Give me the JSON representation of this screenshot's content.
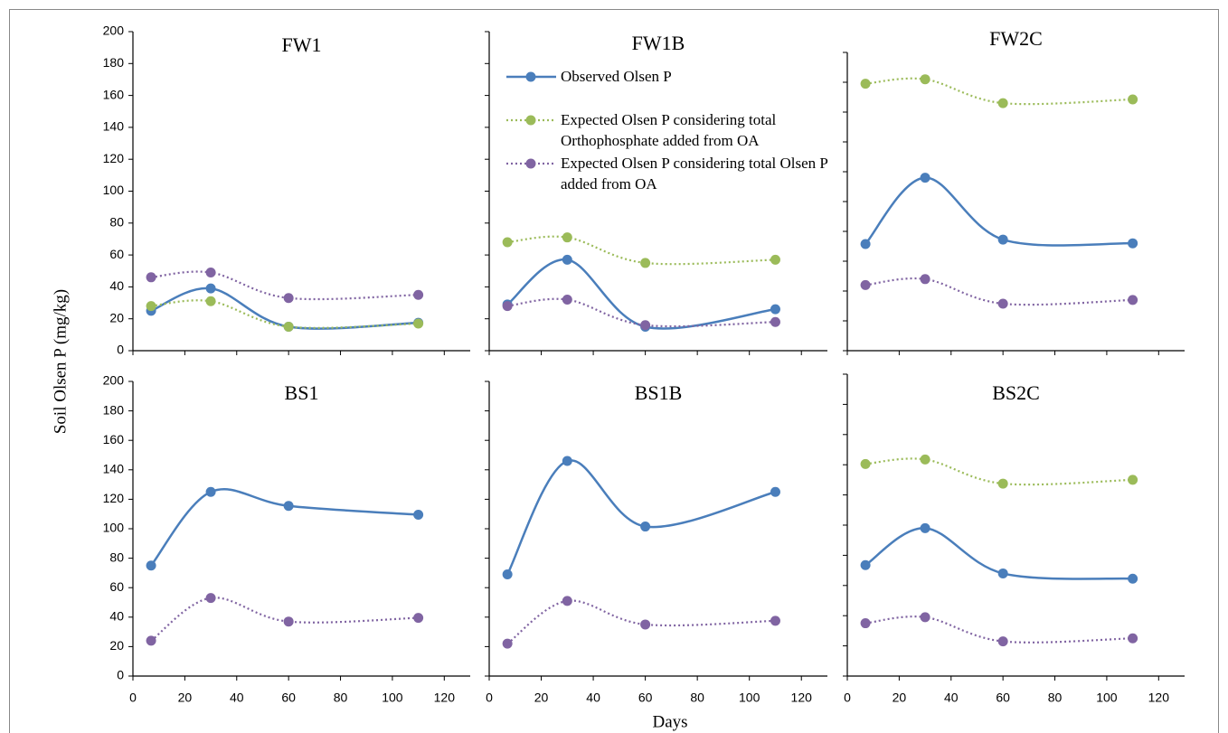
{
  "y_label": "Soil Olsen P (mg/kg)",
  "x_label": "Days",
  "chart_data": [
    {
      "type": "line",
      "title": "FW1",
      "xlim": [
        0,
        130
      ],
      "ylim": [
        0,
        200
      ],
      "xticks": [
        0,
        20,
        40,
        60,
        80,
        100,
        120
      ],
      "yticks": [
        0,
        20,
        40,
        60,
        80,
        100,
        120,
        140,
        160,
        180,
        200
      ],
      "xtick_labels": false,
      "ytick_labels": true,
      "x": [
        7,
        30,
        60,
        110
      ],
      "series": [
        {
          "color": "#4a7ebb",
          "line_style": "solid",
          "values": [
            25,
            39,
            15,
            17.5
          ]
        },
        {
          "color": "#9bbb59",
          "line_style": "dotted",
          "values": [
            28,
            31,
            15,
            17
          ]
        },
        {
          "color": "#8064a2",
          "line_style": "dotted",
          "values": [
            46,
            49,
            33,
            35
          ]
        }
      ]
    },
    {
      "type": "line",
      "title": "FW1B",
      "xlim": [
        0,
        130
      ],
      "ylim": [
        0,
        200
      ],
      "xticks": [
        0,
        20,
        40,
        60,
        80,
        100,
        120
      ],
      "yticks": [
        0,
        20,
        40,
        60,
        80,
        100,
        120,
        140,
        160,
        180,
        200
      ],
      "xtick_labels": false,
      "ytick_labels": false,
      "legend": true,
      "x": [
        7,
        30,
        60,
        110
      ],
      "series": [
        {
          "name": "Observed Olsen P",
          "color": "#4a7ebb",
          "line_style": "solid",
          "values": [
            29,
            57,
            15,
            26
          ]
        },
        {
          "name": "Expected Olsen P considering total Orthophosphate added from OA",
          "color": "#9bbb59",
          "line_style": "dotted",
          "values": [
            68,
            71,
            55,
            57
          ]
        },
        {
          "name": "Expected Olsen P considering total Olsen P added from OA",
          "color": "#8064a2",
          "line_style": "dotted",
          "values": [
            28,
            32,
            16,
            18
          ]
        }
      ]
    },
    {
      "type": "line",
      "title": "FW2C",
      "xlim": [
        0,
        130
      ],
      "ylim": [
        0,
        200
      ],
      "xticks": [
        0,
        20,
        40,
        60,
        80,
        100,
        120
      ],
      "yticks": [
        0,
        20,
        40,
        60,
        80,
        100,
        120,
        140,
        160,
        180,
        200
      ],
      "xtick_labels": false,
      "ytick_labels": false,
      "x": [
        7,
        30,
        60,
        110
      ],
      "series": [
        {
          "color": "#4a7ebb",
          "line_style": "solid",
          "values": [
            71.5,
            116,
            74.5,
            72
          ]
        },
        {
          "color": "#9bbb59",
          "line_style": "dotted",
          "values": [
            179,
            182,
            166,
            168.5
          ]
        },
        {
          "color": "#8064a2",
          "line_style": "dotted",
          "values": [
            44,
            48,
            31.5,
            34
          ]
        }
      ]
    },
    {
      "type": "line",
      "title": "BS1",
      "xlim": [
        0,
        130
      ],
      "ylim": [
        0,
        200
      ],
      "xticks": [
        0,
        20,
        40,
        60,
        80,
        100,
        120
      ],
      "yticks": [
        0,
        20,
        40,
        60,
        80,
        100,
        120,
        140,
        160,
        180,
        200
      ],
      "xtick_labels": true,
      "ytick_labels": true,
      "x": [
        7,
        30,
        60,
        110
      ],
      "series": [
        {
          "color": "#4a7ebb",
          "line_style": "solid",
          "values": [
            75,
            125,
            115.5,
            109.5
          ]
        },
        {
          "color": "#8064a2",
          "line_style": "dotted",
          "values": [
            24,
            53,
            37,
            39.5
          ]
        }
      ]
    },
    {
      "type": "line",
      "title": "BS1B",
      "xlim": [
        0,
        130
      ],
      "ylim": [
        0,
        200
      ],
      "xticks": [
        0,
        20,
        40,
        60,
        80,
        100,
        120
      ],
      "yticks": [
        0,
        20,
        40,
        60,
        80,
        100,
        120,
        140,
        160,
        180,
        200
      ],
      "xtick_labels": true,
      "ytick_labels": false,
      "x": [
        7,
        30,
        60,
        110
      ],
      "series": [
        {
          "color": "#4a7ebb",
          "line_style": "solid",
          "values": [
            69,
            146,
            101.5,
            125
          ]
        },
        {
          "color": "#8064a2",
          "line_style": "dotted",
          "values": [
            22,
            51,
            35,
            37.5
          ]
        }
      ]
    },
    {
      "type": "line",
      "title": "BS2C",
      "xlim": [
        0,
        130
      ],
      "ylim": [
        0,
        200
      ],
      "xticks": [
        0,
        20,
        40,
        60,
        80,
        100,
        120
      ],
      "yticks": [
        0,
        20,
        40,
        60,
        80,
        100,
        120,
        140,
        160,
        180,
        200
      ],
      "xtick_labels": true,
      "ytick_labels": false,
      "x": [
        7,
        30,
        60,
        110
      ],
      "series": [
        {
          "color": "#4a7ebb",
          "line_style": "solid",
          "values": [
            73.5,
            98,
            68,
            64.5
          ]
        },
        {
          "color": "#9bbb59",
          "line_style": "dotted",
          "values": [
            140.5,
            143.5,
            127.5,
            130
          ]
        },
        {
          "color": "#8064a2",
          "line_style": "dotted",
          "values": [
            35,
            39,
            23,
            25
          ]
        }
      ]
    }
  ]
}
